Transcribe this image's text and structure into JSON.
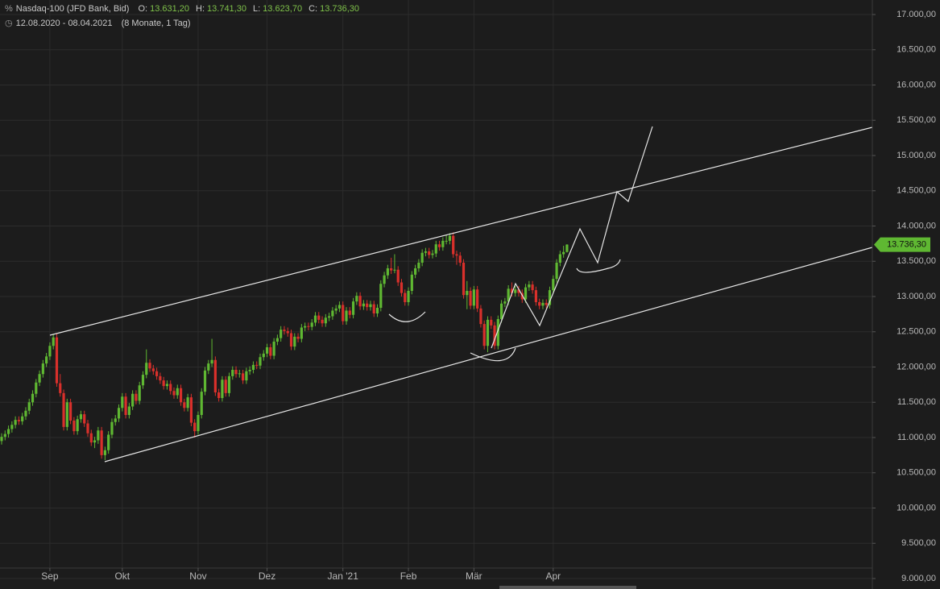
{
  "chart_data": {
    "type": "candlestick",
    "header": {
      "symbol": "Nasdaq-100 (JFD Bank, Bid)",
      "ohlc": [
        {
          "label": "O:",
          "value": "13.631,20"
        },
        {
          "label": "H:",
          "value": "13.741,30"
        },
        {
          "label": "L:",
          "value": "13.623,70"
        },
        {
          "label": "C:",
          "value": "13.736,30"
        }
      ],
      "range": "12.08.2020 - 08.04.2021",
      "span": "(8 Monate, 1 Tag)"
    },
    "up_color": "#5fb832",
    "down_color": "#d9302b",
    "ylim": [
      9000,
      17000
    ],
    "yticks": [
      {
        "value": 9000,
        "label": "9.000,00"
      },
      {
        "value": 9500,
        "label": "9.500,00"
      },
      {
        "value": 10000,
        "label": "10.000,00"
      },
      {
        "value": 10500,
        "label": "10.500,00"
      },
      {
        "value": 11000,
        "label": "11.000,00"
      },
      {
        "value": 11500,
        "label": "11.500,00"
      },
      {
        "value": 12000,
        "label": "12.000,00"
      },
      {
        "value": 12500,
        "label": "12.500,00"
      },
      {
        "value": 13000,
        "label": "13.000,00"
      },
      {
        "value": 13500,
        "label": "13.500,00"
      },
      {
        "value": 14000,
        "label": "14.000,00"
      },
      {
        "value": 14500,
        "label": "14.500,00"
      },
      {
        "value": 15000,
        "label": "15.000,00"
      },
      {
        "value": 15500,
        "label": "15.500,00"
      },
      {
        "value": 16000,
        "label": "16.000,00"
      },
      {
        "value": 16500,
        "label": "16.500,00"
      },
      {
        "value": 17000,
        "label": "17.000,00"
      }
    ],
    "last_price": {
      "value": 13736.3,
      "label": "13.736,30"
    },
    "xticks": [
      {
        "value": 14,
        "label": "Sep"
      },
      {
        "value": 35,
        "label": "Okt"
      },
      {
        "value": 57,
        "label": "Nov"
      },
      {
        "value": 77,
        "label": "Dez"
      },
      {
        "value": 99,
        "label": "Jan '21"
      },
      {
        "value": 118,
        "label": "Feb"
      },
      {
        "value": 137,
        "label": "Mär"
      },
      {
        "value": 160,
        "label": "Apr"
      }
    ],
    "grid": true,
    "candles": [
      [
        10950,
        11060,
        10900,
        11010
      ],
      [
        11010,
        11100,
        10960,
        11050
      ],
      [
        11050,
        11170,
        11000,
        11120
      ],
      [
        11120,
        11230,
        11070,
        11180
      ],
      [
        11180,
        11300,
        11130,
        11250
      ],
      [
        11250,
        11300,
        11180,
        11230
      ],
      [
        11230,
        11350,
        11180,
        11300
      ],
      [
        11300,
        11430,
        11250,
        11380
      ],
      [
        11380,
        11550,
        11330,
        11500
      ],
      [
        11500,
        11670,
        11450,
        11620
      ],
      [
        11620,
        11830,
        11570,
        11780
      ],
      [
        11780,
        11950,
        11730,
        11900
      ],
      [
        11900,
        12100,
        11850,
        12050
      ],
      [
        12050,
        12200,
        12000,
        12150
      ],
      [
        12150,
        12350,
        12100,
        12300
      ],
      [
        12300,
        12470,
        12250,
        12420
      ],
      [
        12420,
        12470,
        11720,
        11770
      ],
      [
        11770,
        11900,
        11580,
        11630
      ],
      [
        11630,
        11680,
        11100,
        11150
      ],
      [
        11150,
        11550,
        11100,
        11500
      ],
      [
        11500,
        11550,
        11190,
        11240
      ],
      [
        11240,
        11290,
        11040,
        11090
      ],
      [
        11090,
        11310,
        11040,
        11260
      ],
      [
        11260,
        11380,
        11210,
        11330
      ],
      [
        11330,
        11380,
        11150,
        11200
      ],
      [
        11200,
        11250,
        11010,
        11060
      ],
      [
        11060,
        11110,
        10880,
        10930
      ],
      [
        10930,
        11010,
        10850,
        10960
      ],
      [
        10960,
        11150,
        10910,
        11100
      ],
      [
        11100,
        11150,
        10700,
        10750
      ],
      [
        10750,
        10870,
        10680,
        10820
      ],
      [
        10820,
        11090,
        10770,
        11040
      ],
      [
        11040,
        11270,
        10990,
        11220
      ],
      [
        11220,
        11320,
        11170,
        11270
      ],
      [
        11270,
        11470,
        11220,
        11420
      ],
      [
        11420,
        11630,
        11370,
        11580
      ],
      [
        11580,
        11630,
        11270,
        11320
      ],
      [
        11320,
        11490,
        11270,
        11440
      ],
      [
        11440,
        11670,
        11390,
        11620
      ],
      [
        11620,
        11670,
        11470,
        11520
      ],
      [
        11520,
        11790,
        11470,
        11740
      ],
      [
        11740,
        11940,
        11690,
        11890
      ],
      [
        11890,
        12250,
        11840,
        12060
      ],
      [
        12060,
        12110,
        11930,
        11980
      ],
      [
        11980,
        12030,
        11890,
        11940
      ],
      [
        11940,
        11990,
        11820,
        11870
      ],
      [
        11870,
        11920,
        11760,
        11810
      ],
      [
        11810,
        11860,
        11680,
        11730
      ],
      [
        11730,
        11810,
        11680,
        11760
      ],
      [
        11760,
        11810,
        11610,
        11660
      ],
      [
        11660,
        11710,
        11550,
        11600
      ],
      [
        11600,
        11750,
        11550,
        11700
      ],
      [
        11700,
        11750,
        11450,
        11500
      ],
      [
        11500,
        11550,
        11370,
        11420
      ],
      [
        11420,
        11620,
        11370,
        11570
      ],
      [
        11570,
        11620,
        11160,
        11210
      ],
      [
        11210,
        11260,
        11000,
        11090
      ],
      [
        11090,
        11370,
        11040,
        11320
      ],
      [
        11320,
        11700,
        11270,
        11650
      ],
      [
        11650,
        12000,
        11600,
        11950
      ],
      [
        11950,
        12100,
        11900,
        12050
      ],
      [
        12050,
        12400,
        12000,
        12100
      ],
      [
        12100,
        12150,
        11590,
        11640
      ],
      [
        11640,
        11690,
        11510,
        11560
      ],
      [
        11560,
        11870,
        11510,
        11820
      ],
      [
        11820,
        11870,
        11580,
        11630
      ],
      [
        11630,
        11920,
        11580,
        11870
      ],
      [
        11870,
        12010,
        11820,
        11960
      ],
      [
        11960,
        12010,
        11850,
        11900
      ],
      [
        11900,
        11960,
        11850,
        11910
      ],
      [
        11910,
        11960,
        11760,
        11810
      ],
      [
        11810,
        11990,
        11760,
        11940
      ],
      [
        11940,
        12010,
        11890,
        11960
      ],
      [
        11960,
        12080,
        11910,
        12030
      ],
      [
        12030,
        12080,
        11970,
        12020
      ],
      [
        12020,
        12190,
        11970,
        12140
      ],
      [
        12140,
        12240,
        12090,
        12190
      ],
      [
        12190,
        12330,
        12140,
        12280
      ],
      [
        12280,
        12330,
        12110,
        12160
      ],
      [
        12160,
        12410,
        12110,
        12360
      ],
      [
        12360,
        12460,
        12310,
        12410
      ],
      [
        12410,
        12580,
        12360,
        12530
      ],
      [
        12530,
        12580,
        12460,
        12510
      ],
      [
        12510,
        12560,
        12430,
        12480
      ],
      [
        12480,
        12530,
        12240,
        12290
      ],
      [
        12290,
        12480,
        12240,
        12430
      ],
      [
        12430,
        12480,
        12350,
        12400
      ],
      [
        12400,
        12610,
        12350,
        12560
      ],
      [
        12560,
        12630,
        12510,
        12580
      ],
      [
        12580,
        12630,
        12520,
        12570
      ],
      [
        12570,
        12680,
        12520,
        12630
      ],
      [
        12630,
        12780,
        12580,
        12730
      ],
      [
        12730,
        12780,
        12620,
        12670
      ],
      [
        12670,
        12720,
        12570,
        12620
      ],
      [
        12620,
        12750,
        12570,
        12700
      ],
      [
        12700,
        12770,
        12650,
        12720
      ],
      [
        12720,
        12850,
        12670,
        12800
      ],
      [
        12800,
        12880,
        12750,
        12830
      ],
      [
        12830,
        12930,
        12780,
        12880
      ],
      [
        12880,
        12930,
        12600,
        12650
      ],
      [
        12650,
        12850,
        12600,
        12800
      ],
      [
        12800,
        12850,
        12690,
        12740
      ],
      [
        12740,
        12980,
        12690,
        12930
      ],
      [
        12930,
        13060,
        12880,
        13010
      ],
      [
        13010,
        13060,
        12810,
        12860
      ],
      [
        12860,
        12950,
        12810,
        12900
      ],
      [
        12900,
        12950,
        12800,
        12850
      ],
      [
        12850,
        12940,
        12800,
        12890
      ],
      [
        12890,
        12940,
        12710,
        12760
      ],
      [
        12760,
        12890,
        12710,
        12840
      ],
      [
        12840,
        13230,
        12790,
        13180
      ],
      [
        13180,
        13350,
        13130,
        13300
      ],
      [
        13300,
        13450,
        13250,
        13400
      ],
      [
        13400,
        13550,
        13320,
        13370
      ],
      [
        13370,
        13600,
        13330,
        13380
      ],
      [
        13380,
        13430,
        13150,
        13200
      ],
      [
        13200,
        13250,
        13000,
        13050
      ],
      [
        13050,
        13100,
        12870,
        12920
      ],
      [
        12920,
        13130,
        12870,
        13080
      ],
      [
        13080,
        13360,
        13030,
        13310
      ],
      [
        13310,
        13450,
        13260,
        13400
      ],
      [
        13400,
        13530,
        13350,
        13480
      ],
      [
        13480,
        13670,
        13430,
        13620
      ],
      [
        13620,
        13690,
        13570,
        13640
      ],
      [
        13640,
        13690,
        13540,
        13590
      ],
      [
        13590,
        13660,
        13540,
        13610
      ],
      [
        13610,
        13790,
        13560,
        13740
      ],
      [
        13740,
        13790,
        13650,
        13700
      ],
      [
        13700,
        13840,
        13650,
        13790
      ],
      [
        13790,
        13880,
        13740,
        13790
      ],
      [
        13790,
        13900,
        13740,
        13860
      ],
      [
        13860,
        13910,
        13550,
        13600
      ],
      [
        13600,
        13650,
        13450,
        13580
      ],
      [
        13580,
        13630,
        13430,
        13480
      ],
      [
        13480,
        13530,
        12970,
        13020
      ],
      [
        13020,
        13220,
        12820,
        13080
      ],
      [
        13080,
        13130,
        12820,
        12870
      ],
      [
        12870,
        13150,
        12820,
        13100
      ],
      [
        13100,
        13150,
        12780,
        12830
      ],
      [
        12830,
        12880,
        12560,
        12610
      ],
      [
        12610,
        12660,
        12250,
        12300
      ],
      [
        12300,
        12720,
        12210,
        12670
      ],
      [
        12670,
        12720,
        12540,
        12590
      ],
      [
        12590,
        12640,
        12250,
        12300
      ],
      [
        12300,
        12730,
        12250,
        12680
      ],
      [
        12680,
        12950,
        12630,
        12900
      ],
      [
        12900,
        12980,
        12850,
        12930
      ],
      [
        12930,
        13160,
        12880,
        13110
      ],
      [
        13110,
        13200,
        13000,
        13050
      ],
      [
        13050,
        13150,
        13000,
        13100
      ],
      [
        13100,
        13150,
        13000,
        13050
      ],
      [
        13050,
        13100,
        12910,
        12960
      ],
      [
        12960,
        13180,
        12910,
        13130
      ],
      [
        13130,
        13220,
        13080,
        13170
      ],
      [
        13170,
        13220,
        13040,
        13090
      ],
      [
        13090,
        13140,
        12870,
        12920
      ],
      [
        12920,
        12970,
        12820,
        12870
      ],
      [
        12870,
        12960,
        12820,
        12910
      ],
      [
        12910,
        12960,
        12830,
        12880
      ],
      [
        12880,
        13140,
        12830,
        13090
      ],
      [
        13090,
        13300,
        13040,
        13250
      ],
      [
        13250,
        13530,
        13200,
        13480
      ],
      [
        13480,
        13650,
        13430,
        13600
      ],
      [
        13600,
        13720,
        13550,
        13631.2
      ],
      [
        13631.2,
        13741.3,
        13623.7,
        13736.3
      ]
    ]
  }
}
